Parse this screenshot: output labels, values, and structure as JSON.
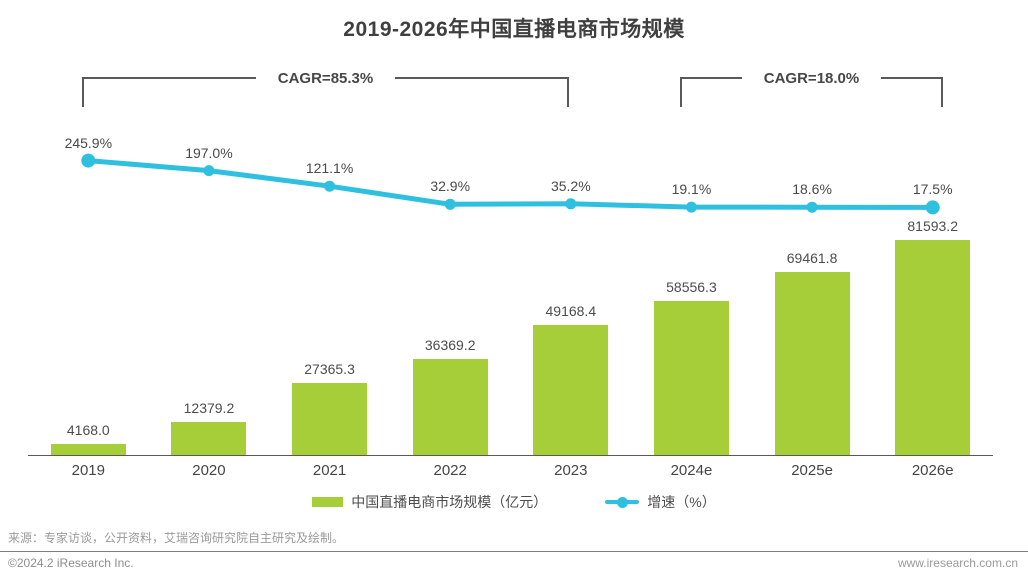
{
  "title": "2019-2026年中国直播电商市场规模",
  "cagr_brackets": [
    {
      "label": "CAGR=85.3%",
      "from": "2019",
      "to": "2023"
    },
    {
      "label": "CAGR=18.0%",
      "from": "2024e",
      "to": "2026e"
    }
  ],
  "chart_data": {
    "type": "bar",
    "title": "2019-2026年中国直播电商市场规模",
    "categories": [
      "2019",
      "2020",
      "2021",
      "2022",
      "2023",
      "2024e",
      "2025e",
      "2026e"
    ],
    "series": [
      {
        "name": "中国直播电商市场规模（亿元）",
        "type": "bar",
        "unit": "亿元",
        "color": "#a6ce39",
        "values": [
          4168.0,
          12379.2,
          27365.3,
          36369.2,
          49168.4,
          58556.3,
          69461.8,
          81593.2
        ]
      },
      {
        "name": "增速（%）",
        "type": "line",
        "unit": "%",
        "color": "#2fc0e0",
        "values": [
          245.9,
          197.0,
          121.1,
          32.9,
          35.2,
          19.1,
          18.6,
          17.5
        ]
      }
    ],
    "legend_position": "bottom",
    "grid": false,
    "bar_axis_range": [
      0,
      90000
    ],
    "line_axis_range": [
      0,
      400
    ],
    "annotations": [
      "CAGR=85.3%",
      "CAGR=18.0%"
    ]
  },
  "legend": {
    "bar_label": "中国直播电商市场规模（亿元）",
    "line_label": "增速（%）"
  },
  "source": "来源：专家访谈，公开资料，艾瑞咨询研究院自主研究及绘制。",
  "footer": {
    "copyright": "©2024.2 iResearch Inc.",
    "website": "www.iresearch.com.cn"
  }
}
